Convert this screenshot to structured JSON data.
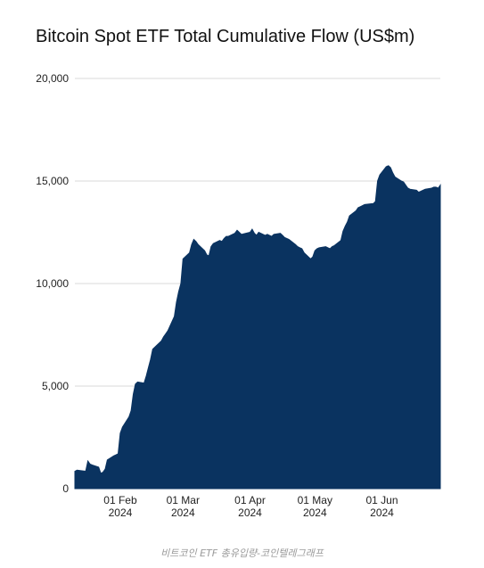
{
  "chart_data": {
    "type": "area",
    "title": "Bitcoin Spot ETF Total Cumulative Flow (US$m)",
    "xlabel": "",
    "ylabel": "",
    "ylim": [
      0,
      20000
    ],
    "y_ticks": [
      {
        "value": 0,
        "label": "0"
      },
      {
        "value": 5000,
        "label": "5,000"
      },
      {
        "value": 10000,
        "label": "10,000"
      },
      {
        "value": 15000,
        "label": "15,000"
      },
      {
        "value": 20000,
        "label": "20,000"
      }
    ],
    "xlim": [
      "2024-01-11",
      "2024-06-28"
    ],
    "x_ticks": [
      {
        "date": "2024-02-01",
        "line1": "01 Feb",
        "line2": "2024"
      },
      {
        "date": "2024-03-01",
        "line1": "01 Mar",
        "line2": "2024"
      },
      {
        "date": "2024-04-01",
        "line1": "01 Apr",
        "line2": "2024"
      },
      {
        "date": "2024-05-01",
        "line1": "01 May",
        "line2": "2024"
      },
      {
        "date": "2024-06-01",
        "line1": "01 Jun",
        "line2": "2024"
      }
    ],
    "grid": "horizontal",
    "fill_color": "#0a3360",
    "grid_color": "#d9d9d9",
    "series": [
      {
        "name": "",
        "x": [
          "2024-01-11",
          "2024-01-12",
          "2024-01-16",
          "2024-01-17",
          "2024-01-18",
          "2024-01-19",
          "2024-01-22",
          "2024-01-23",
          "2024-01-24",
          "2024-01-25",
          "2024-01-26",
          "2024-01-29",
          "2024-01-30",
          "2024-01-31",
          "2024-02-01",
          "2024-02-02",
          "2024-02-05",
          "2024-02-06",
          "2024-02-07",
          "2024-02-08",
          "2024-02-09",
          "2024-02-12",
          "2024-02-13",
          "2024-02-14",
          "2024-02-15",
          "2024-02-16",
          "2024-02-20",
          "2024-02-21",
          "2024-02-22",
          "2024-02-23",
          "2024-02-26",
          "2024-02-27",
          "2024-02-28",
          "2024-02-29",
          "2024-03-01",
          "2024-03-04",
          "2024-03-05",
          "2024-03-06",
          "2024-03-07",
          "2024-03-08",
          "2024-03-11",
          "2024-03-12",
          "2024-03-13",
          "2024-03-14",
          "2024-03-15",
          "2024-03-18",
          "2024-03-19",
          "2024-03-20",
          "2024-03-21",
          "2024-03-22",
          "2024-03-25",
          "2024-03-26",
          "2024-03-27",
          "2024-03-28",
          "2024-04-01",
          "2024-04-02",
          "2024-04-03",
          "2024-04-04",
          "2024-04-05",
          "2024-04-08",
          "2024-04-09",
          "2024-04-10",
          "2024-04-11",
          "2024-04-12",
          "2024-04-15",
          "2024-04-16",
          "2024-04-17",
          "2024-04-18",
          "2024-04-19",
          "2024-04-22",
          "2024-04-23",
          "2024-04-24",
          "2024-04-25",
          "2024-04-26",
          "2024-04-29",
          "2024-04-30",
          "2024-05-01",
          "2024-05-02",
          "2024-05-03",
          "2024-05-06",
          "2024-05-07",
          "2024-05-08",
          "2024-05-09",
          "2024-05-10",
          "2024-05-13",
          "2024-05-14",
          "2024-05-15",
          "2024-05-16",
          "2024-05-17",
          "2024-05-20",
          "2024-05-21",
          "2024-05-22",
          "2024-05-23",
          "2024-05-24",
          "2024-05-28",
          "2024-05-29",
          "2024-05-30",
          "2024-05-31",
          "2024-06-03",
          "2024-06-04",
          "2024-06-05",
          "2024-06-06",
          "2024-06-07",
          "2024-06-10",
          "2024-06-11",
          "2024-06-12",
          "2024-06-13",
          "2024-06-14",
          "2024-06-17",
          "2024-06-18",
          "2024-06-19",
          "2024-06-20",
          "2024-06-21",
          "2024-06-24",
          "2024-06-25",
          "2024-06-26",
          "2024-06-27",
          "2024-06-28"
        ],
        "values": [
          850,
          900,
          850,
          1350,
          1200,
          1150,
          1050,
          750,
          800,
          950,
          1400,
          1600,
          1650,
          1700,
          2700,
          3000,
          3500,
          3800,
          4600,
          5100,
          5200,
          5150,
          5500,
          5900,
          6300,
          6800,
          7200,
          7400,
          7550,
          7700,
          8400,
          9100,
          9600,
          10000,
          11200,
          11500,
          11900,
          12150,
          12050,
          11900,
          11600,
          11400,
          11350,
          11800,
          11950,
          12100,
          12050,
          12200,
          12300,
          12300,
          12450,
          12600,
          12500,
          12400,
          12500,
          12650,
          12450,
          12350,
          12500,
          12350,
          12400,
          12350,
          12300,
          12400,
          12450,
          12350,
          12250,
          12200,
          12150,
          11900,
          11800,
          11750,
          11700,
          11500,
          11200,
          11300,
          11600,
          11700,
          11750,
          11800,
          11750,
          11700,
          11800,
          11850,
          12100,
          12550,
          12800,
          13000,
          13300,
          13550,
          13700,
          13750,
          13800,
          13850,
          13900,
          14000,
          15000,
          15300,
          15700,
          15750,
          15650,
          15400,
          15200,
          15000,
          14950,
          14800,
          14650,
          14600,
          14550,
          14450,
          14500,
          14550,
          14600,
          14650,
          14700,
          14700,
          14650,
          14800
        ]
      }
    ]
  },
  "caption": "비트코인 ETF 총유입량-코인텔레그래프"
}
